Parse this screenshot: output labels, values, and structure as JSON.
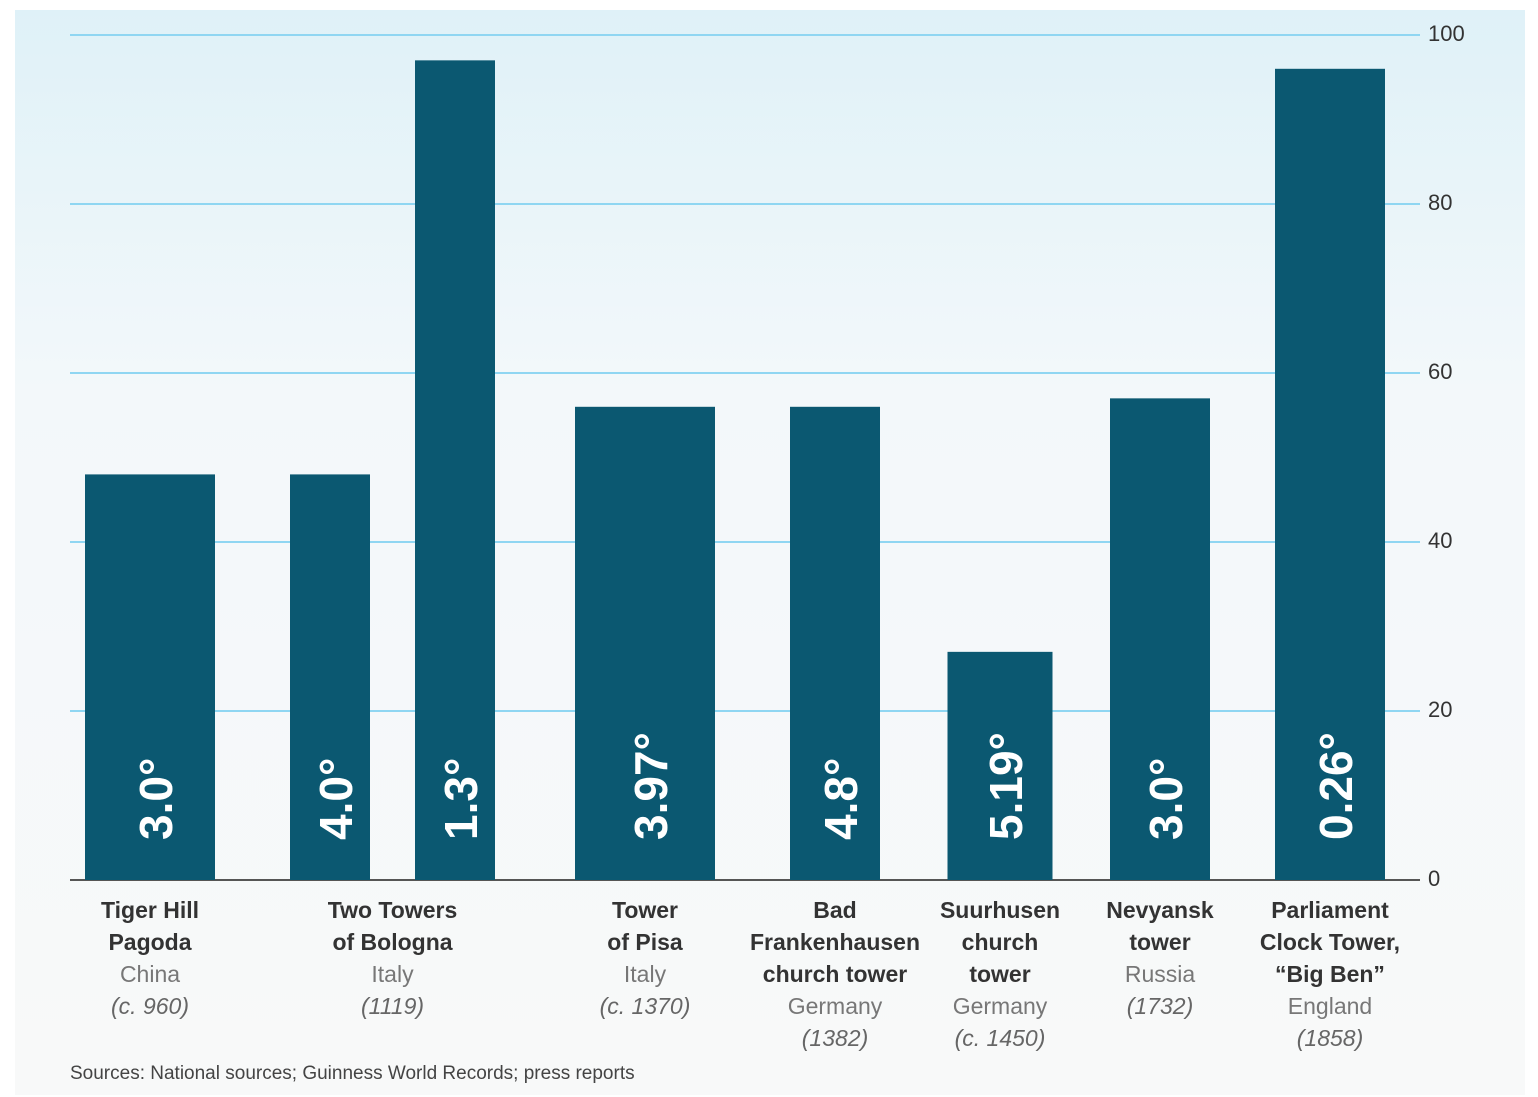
{
  "chart_data": {
    "type": "bar",
    "categories": [
      [
        "Tiger Hill",
        "Pagoda"
      ],
      [
        "Two Towers",
        "of Bologna"
      ],
      null,
      [
        "Tower",
        "of Pisa"
      ],
      [
        "Bad",
        "Frankenhausen",
        "church tower"
      ],
      [
        "Suurhusen",
        "church",
        "tower"
      ],
      [
        "Nevyansk",
        "tower"
      ],
      [
        "Parliament",
        "Clock Tower,",
        "“Big Ben”"
      ]
    ],
    "countries": [
      "China",
      "Italy",
      null,
      "Italy",
      "Germany",
      "Germany",
      "Russia",
      "England"
    ],
    "dates": [
      "(c. 960)",
      "(1119)",
      null,
      "(c. 1370)",
      "(1382)",
      "(c. 1450)",
      "(1732)",
      "(1858)"
    ],
    "values": [
      48,
      48,
      97,
      56,
      56,
      27,
      57,
      96
    ],
    "lean_labels": [
      "3.0°",
      "4.0°",
      "1.3°",
      "3.97°",
      "4.8°",
      "5.19°",
      "3.0°",
      "0.26°"
    ],
    "color": "#0b5871",
    "ylim": [
      0,
      100
    ],
    "yticks": [
      0,
      20,
      40,
      60,
      80,
      100
    ],
    "grid": true,
    "source": "Sources: National sources; Guinness World Records; press reports"
  }
}
